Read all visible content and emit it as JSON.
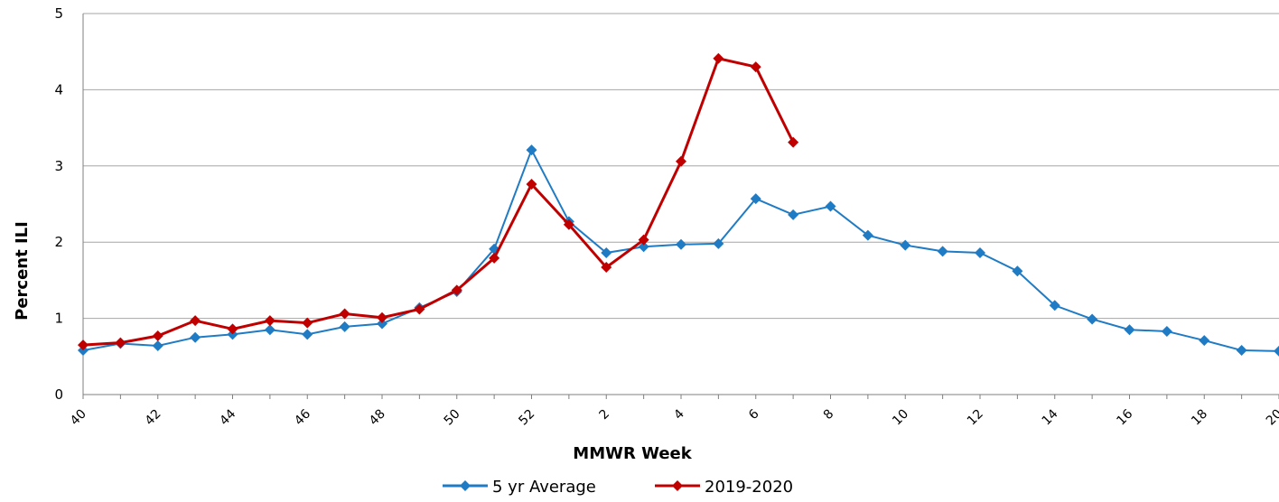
{
  "chart_data": {
    "type": "line",
    "x_label": "MMWR Week",
    "y_label": "Percent ILI",
    "categories": [
      40,
      null,
      42,
      null,
      44,
      null,
      46,
      null,
      48,
      null,
      50,
      null,
      52,
      null,
      2,
      null,
      4,
      null,
      6,
      null,
      8,
      null,
      10,
      null,
      12,
      null,
      14,
      null,
      16,
      null,
      18,
      null,
      20
    ],
    "series": [
      {
        "name": "5 yr Average",
        "color": "#1f7bc4",
        "values": [
          0.58,
          0.67,
          0.64,
          0.75,
          0.79,
          0.85,
          0.79,
          0.89,
          0.93,
          1.14,
          1.35,
          1.91,
          3.21,
          2.27,
          1.86,
          1.94,
          1.97,
          1.98,
          2.57,
          2.36,
          2.47,
          2.09,
          1.96,
          1.88,
          1.86,
          1.62,
          1.17,
          0.99,
          0.85,
          0.83,
          0.71,
          0.58,
          0.57
        ]
      },
      {
        "name": "2019-2020",
        "color": "#c00000",
        "values": [
          0.65,
          0.68,
          0.77,
          0.97,
          0.86,
          0.97,
          0.94,
          1.06,
          1.01,
          1.12,
          1.37,
          1.79,
          2.76,
          2.23,
          1.67,
          2.03,
          3.06,
          4.41,
          4.3,
          3.31,
          null,
          null,
          null,
          null,
          null,
          null,
          null,
          null,
          null,
          null,
          null,
          null,
          null
        ]
      }
    ],
    "ylim": [
      0,
      5
    ],
    "yticks": [
      0,
      1,
      2,
      3,
      4,
      5
    ],
    "grid": true,
    "legend": "bottom"
  }
}
